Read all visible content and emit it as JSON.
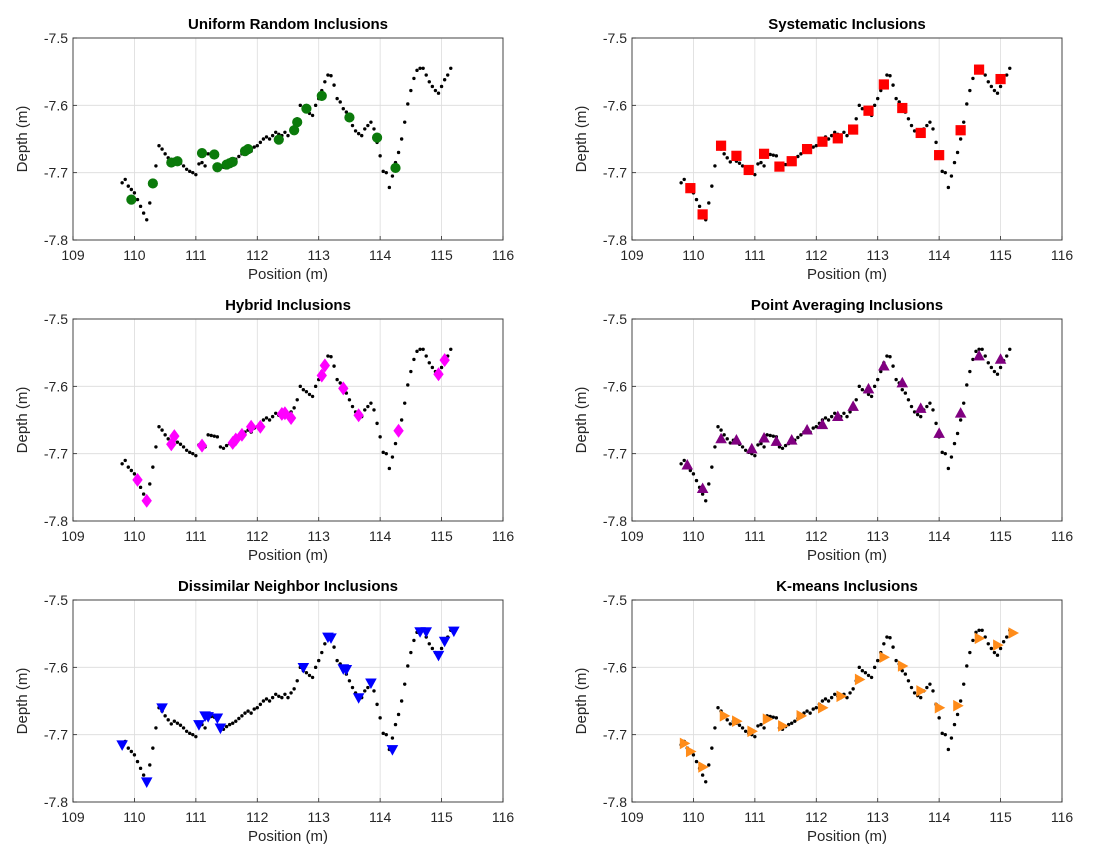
{
  "chart_data": {
    "type": "scatter",
    "xlim": [
      109,
      116
    ],
    "ylim": [
      -7.8,
      -7.5
    ],
    "xticks": [
      109,
      110,
      111,
      112,
      113,
      114,
      115,
      116
    ],
    "yticks": [
      -7.5,
      -7.6,
      -7.7,
      -7.8
    ],
    "xlabel": "Position (m)",
    "ylabel": "Depth (m)",
    "grid": true,
    "background_colour": "#000000",
    "background_points": [
      [
        109.8,
        -7.715
      ],
      [
        109.85,
        -7.71
      ],
      [
        109.9,
        -7.72
      ],
      [
        109.95,
        -7.725
      ],
      [
        110.0,
        -7.73
      ],
      [
        110.05,
        -7.74
      ],
      [
        110.1,
        -7.75
      ],
      [
        110.15,
        -7.76
      ],
      [
        110.2,
        -7.77
      ],
      [
        110.25,
        -7.745
      ],
      [
        110.3,
        -7.72
      ],
      [
        110.35,
        -7.69
      ],
      [
        110.4,
        -7.66
      ],
      [
        110.45,
        -7.665
      ],
      [
        110.5,
        -7.672
      ],
      [
        110.55,
        -7.678
      ],
      [
        110.6,
        -7.684
      ],
      [
        110.65,
        -7.68
      ],
      [
        110.7,
        -7.683
      ],
      [
        110.75,
        -7.686
      ],
      [
        110.8,
        -7.69
      ],
      [
        110.85,
        -7.695
      ],
      [
        110.9,
        -7.698
      ],
      [
        110.95,
        -7.7
      ],
      [
        111.0,
        -7.703
      ],
      [
        111.05,
        -7.687
      ],
      [
        111.1,
        -7.685
      ],
      [
        111.15,
        -7.69
      ],
      [
        111.2,
        -7.672
      ],
      [
        111.25,
        -7.673
      ],
      [
        111.3,
        -7.674
      ],
      [
        111.35,
        -7.675
      ],
      [
        111.4,
        -7.69
      ],
      [
        111.45,
        -7.692
      ],
      [
        111.5,
        -7.688
      ],
      [
        111.55,
        -7.685
      ],
      [
        111.6,
        -7.683
      ],
      [
        111.65,
        -7.68
      ],
      [
        111.7,
        -7.676
      ],
      [
        111.75,
        -7.672
      ],
      [
        111.8,
        -7.668
      ],
      [
        111.85,
        -7.665
      ],
      [
        111.9,
        -7.668
      ],
      [
        111.95,
        -7.662
      ],
      [
        112.0,
        -7.66
      ],
      [
        112.05,
        -7.655
      ],
      [
        112.1,
        -7.65
      ],
      [
        112.15,
        -7.647
      ],
      [
        112.2,
        -7.65
      ],
      [
        112.25,
        -7.645
      ],
      [
        112.3,
        -7.64
      ],
      [
        112.35,
        -7.643
      ],
      [
        112.4,
        -7.645
      ],
      [
        112.45,
        -7.64
      ],
      [
        112.5,
        -7.645
      ],
      [
        112.55,
        -7.638
      ],
      [
        112.6,
        -7.632
      ],
      [
        112.65,
        -7.62
      ],
      [
        112.7,
        -7.6
      ],
      [
        112.75,
        -7.605
      ],
      [
        112.8,
        -7.608
      ],
      [
        112.85,
        -7.612
      ],
      [
        112.9,
        -7.615
      ],
      [
        112.95,
        -7.6
      ],
      [
        113.0,
        -7.59
      ],
      [
        113.05,
        -7.578
      ],
      [
        113.1,
        -7.565
      ],
      [
        113.15,
        -7.555
      ],
      [
        113.2,
        -7.556
      ],
      [
        113.25,
        -7.57
      ],
      [
        113.3,
        -7.59
      ],
      [
        113.35,
        -7.595
      ],
      [
        113.4,
        -7.605
      ],
      [
        113.45,
        -7.61
      ],
      [
        113.5,
        -7.62
      ],
      [
        113.55,
        -7.63
      ],
      [
        113.6,
        -7.638
      ],
      [
        113.65,
        -7.642
      ],
      [
        113.7,
        -7.645
      ],
      [
        113.75,
        -7.635
      ],
      [
        113.8,
        -7.63
      ],
      [
        113.85,
        -7.625
      ],
      [
        113.9,
        -7.635
      ],
      [
        113.95,
        -7.655
      ],
      [
        114.0,
        -7.675
      ],
      [
        114.05,
        -7.698
      ],
      [
        114.1,
        -7.7
      ],
      [
        114.15,
        -7.722
      ],
      [
        114.2,
        -7.705
      ],
      [
        114.25,
        -7.685
      ],
      [
        114.3,
        -7.67
      ],
      [
        114.35,
        -7.65
      ],
      [
        114.4,
        -7.625
      ],
      [
        114.45,
        -7.598
      ],
      [
        114.5,
        -7.578
      ],
      [
        114.55,
        -7.56
      ],
      [
        114.6,
        -7.548
      ],
      [
        114.65,
        -7.545
      ],
      [
        114.7,
        -7.545
      ],
      [
        114.75,
        -7.555
      ],
      [
        114.8,
        -7.565
      ],
      [
        114.85,
        -7.572
      ],
      [
        114.9,
        -7.578
      ],
      [
        114.95,
        -7.582
      ],
      [
        115.0,
        -7.572
      ],
      [
        115.05,
        -7.562
      ],
      [
        115.1,
        -7.555
      ],
      [
        115.15,
        -7.545
      ]
    ],
    "panels": [
      {
        "title": "Uniform Random Inclusions",
        "marker": "circle",
        "colour": "#0b7a0b",
        "points": [
          [
            109.95,
            -7.74
          ],
          [
            110.3,
            -7.716
          ],
          [
            110.6,
            -7.685
          ],
          [
            110.7,
            -7.683
          ],
          [
            111.1,
            -7.671
          ],
          [
            111.3,
            -7.673
          ],
          [
            111.35,
            -7.692
          ],
          [
            111.5,
            -7.688
          ],
          [
            111.55,
            -7.686
          ],
          [
            111.6,
            -7.684
          ],
          [
            111.8,
            -7.668
          ],
          [
            111.85,
            -7.665
          ],
          [
            112.35,
            -7.651
          ],
          [
            112.6,
            -7.637
          ],
          [
            112.65,
            -7.625
          ],
          [
            112.8,
            -7.605
          ],
          [
            113.05,
            -7.586
          ],
          [
            113.5,
            -7.618
          ],
          [
            113.95,
            -7.648
          ],
          [
            114.25,
            -7.693
          ]
        ]
      },
      {
        "title": "Systematic Inclusions",
        "marker": "square",
        "colour": "#ff0000",
        "points": [
          [
            109.95,
            -7.723
          ],
          [
            110.15,
            -7.762
          ],
          [
            110.45,
            -7.66
          ],
          [
            110.7,
            -7.675
          ],
          [
            110.9,
            -7.696
          ],
          [
            111.15,
            -7.672
          ],
          [
            111.4,
            -7.691
          ],
          [
            111.6,
            -7.683
          ],
          [
            111.85,
            -7.665
          ],
          [
            112.1,
            -7.654
          ],
          [
            112.35,
            -7.649
          ],
          [
            112.6,
            -7.636
          ],
          [
            112.85,
            -7.608
          ],
          [
            113.1,
            -7.569
          ],
          [
            113.4,
            -7.604
          ],
          [
            113.7,
            -7.641
          ],
          [
            114.0,
            -7.674
          ],
          [
            114.35,
            -7.637
          ],
          [
            114.65,
            -7.547
          ],
          [
            115.0,
            -7.561
          ]
        ]
      },
      {
        "title": "Hybrid Inclusions",
        "marker": "diamond",
        "colour": "#ff00ff",
        "points": [
          [
            110.05,
            -7.739
          ],
          [
            110.2,
            -7.77
          ],
          [
            110.6,
            -7.686
          ],
          [
            110.65,
            -7.674
          ],
          [
            111.1,
            -7.688
          ],
          [
            111.6,
            -7.684
          ],
          [
            111.65,
            -7.679
          ],
          [
            111.75,
            -7.672
          ],
          [
            111.9,
            -7.66
          ],
          [
            112.05,
            -7.66
          ],
          [
            112.4,
            -7.641
          ],
          [
            112.45,
            -7.64
          ],
          [
            112.55,
            -7.647
          ],
          [
            113.05,
            -7.584
          ],
          [
            113.1,
            -7.569
          ],
          [
            113.4,
            -7.603
          ],
          [
            113.65,
            -7.643
          ],
          [
            114.3,
            -7.666
          ],
          [
            114.95,
            -7.582
          ],
          [
            115.05,
            -7.561
          ]
        ]
      },
      {
        "title": "Point Averaging Inclusions",
        "marker": "triangle-up",
        "colour": "#800080",
        "points": [
          [
            109.9,
            -7.717
          ],
          [
            110.15,
            -7.752
          ],
          [
            110.45,
            -7.678
          ],
          [
            110.7,
            -7.68
          ],
          [
            110.95,
            -7.693
          ],
          [
            111.15,
            -7.677
          ],
          [
            111.35,
            -7.682
          ],
          [
            111.6,
            -7.68
          ],
          [
            111.85,
            -7.665
          ],
          [
            112.1,
            -7.657
          ],
          [
            112.35,
            -7.645
          ],
          [
            112.6,
            -7.63
          ],
          [
            112.85,
            -7.604
          ],
          [
            113.1,
            -7.57
          ],
          [
            113.4,
            -7.595
          ],
          [
            113.7,
            -7.633
          ],
          [
            114.0,
            -7.67
          ],
          [
            114.35,
            -7.64
          ],
          [
            114.65,
            -7.555
          ],
          [
            115.0,
            -7.56
          ]
        ]
      },
      {
        "title": "Dissimilar Neighbor Inclusions",
        "marker": "triangle-down",
        "colour": "#0000ff",
        "points": [
          [
            109.8,
            -7.715
          ],
          [
            110.2,
            -7.77
          ],
          [
            110.45,
            -7.66
          ],
          [
            111.05,
            -7.685
          ],
          [
            111.15,
            -7.672
          ],
          [
            111.2,
            -7.673
          ],
          [
            111.35,
            -7.675
          ],
          [
            111.4,
            -7.69
          ],
          [
            112.75,
            -7.6
          ],
          [
            113.15,
            -7.555
          ],
          [
            113.2,
            -7.556
          ],
          [
            113.4,
            -7.602
          ],
          [
            113.45,
            -7.603
          ],
          [
            113.65,
            -7.645
          ],
          [
            113.85,
            -7.623
          ],
          [
            114.2,
            -7.722
          ],
          [
            114.65,
            -7.547
          ],
          [
            114.75,
            -7.547
          ],
          [
            114.95,
            -7.582
          ],
          [
            115.05,
            -7.561
          ],
          [
            115.2,
            -7.546
          ]
        ]
      },
      {
        "title": "K-means Inclusions",
        "marker": "triangle-right",
        "colour": "#ff8c1a",
        "points": [
          [
            109.85,
            -7.713
          ],
          [
            109.95,
            -7.725
          ],
          [
            110.15,
            -7.748
          ],
          [
            110.5,
            -7.672
          ],
          [
            110.7,
            -7.68
          ],
          [
            110.95,
            -7.695
          ],
          [
            111.2,
            -7.677
          ],
          [
            111.45,
            -7.687
          ],
          [
            111.75,
            -7.672
          ],
          [
            112.1,
            -7.66
          ],
          [
            112.4,
            -7.643
          ],
          [
            112.7,
            -7.618
          ],
          [
            113.1,
            -7.585
          ],
          [
            113.4,
            -7.598
          ],
          [
            113.7,
            -7.635
          ],
          [
            114.0,
            -7.66
          ],
          [
            114.3,
            -7.657
          ],
          [
            114.65,
            -7.557
          ],
          [
            114.95,
            -7.567
          ],
          [
            115.2,
            -7.549
          ]
        ]
      }
    ]
  }
}
